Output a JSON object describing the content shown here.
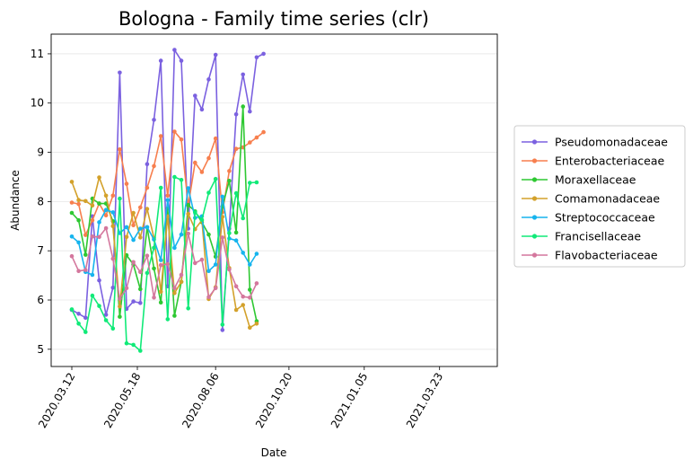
{
  "chart_data": {
    "type": "line",
    "title": "Bologna - Family time series (clr)",
    "xlabel": "Date",
    "ylabel": "Abundance",
    "x_ticks": [
      "2020.03.12",
      "2020.05.18",
      "2020.08.06",
      "2020.10.20",
      "2021.01.05",
      "2021.03.23"
    ],
    "y_ticks": [
      5,
      6,
      7,
      8,
      9,
      10,
      11
    ],
    "ylim": [
      4.65,
      11.4
    ],
    "grid": "horizontal",
    "legend_position": "right",
    "x": [
      "2020-03-12",
      "2020-03-19",
      "2020-03-26",
      "2020-04-02",
      "2020-04-09",
      "2020-04-16",
      "2020-04-23",
      "2020-04-30",
      "2020-05-07",
      "2020-05-14",
      "2020-05-21",
      "2020-05-28",
      "2020-06-04",
      "2020-06-11",
      "2020-06-18",
      "2020-06-25",
      "2020-07-02",
      "2020-07-09",
      "2020-07-16",
      "2020-07-23",
      "2020-07-30",
      "2020-08-06",
      "2020-08-13",
      "2020-08-20",
      "2020-08-27",
      "2020-09-03",
      "2020-09-10",
      "2020-09-17",
      "2020-09-24",
      "2020-10-01",
      "2020-10-08",
      "2020-10-15",
      "2020-10-22",
      "2020-10-29",
      "2020-11-05",
      "2020-11-12",
      "2020-11-19",
      "2020-11-26",
      "2020-12-03",
      "2020-12-10",
      "2020-12-17",
      "2020-12-24",
      "2020-12-31",
      "2021-01-07",
      "2021-01-14",
      "2021-01-21",
      "2021-01-28",
      "2021-02-04",
      "2021-02-11",
      "2021-02-18",
      "2021-02-25",
      "2021-03-04",
      "2021-03-11",
      "2021-03-18",
      "2021-03-25",
      "2021-04-01",
      "2021-04-08",
      "2021-04-15",
      "2021-04-22",
      "2021-04-29"
    ],
    "series": [
      {
        "name": "Pseudomonadaceae",
        "color": "#7b61e0",
        "points": [
          [
            "2020-03-12",
            5.8
          ],
          [
            "2020-03-19",
            5.72
          ],
          [
            "2020-03-26",
            5.64
          ],
          [
            "2020-04-02",
            7.7
          ],
          [
            "2020-04-09",
            6.4
          ],
          [
            "2020-04-16",
            5.7
          ],
          [
            "2020-04-23",
            6.25
          ],
          [
            "2020-04-30",
            10.62
          ],
          [
            "2020-05-07",
            5.82
          ],
          [
            "2020-05-14",
            5.97
          ],
          [
            "2020-05-21",
            5.94
          ],
          [
            "2020-05-28",
            8.76
          ],
          [
            "2020-06-04",
            9.66
          ],
          [
            "2020-06-11",
            10.86
          ],
          [
            "2020-06-18",
            6.28
          ],
          [
            "2020-06-25",
            11.08
          ],
          [
            "2020-07-02",
            10.86
          ],
          [
            "2020-07-09",
            7.45
          ],
          [
            "2020-07-16",
            10.15
          ],
          [
            "2020-07-23",
            9.87
          ],
          [
            "2020-07-30",
            10.48
          ],
          [
            "2020-08-06",
            10.98
          ],
          [
            "2020-08-13",
            5.39
          ],
          [
            "2020-08-20",
            7.45
          ],
          [
            "2020-08-27",
            9.77
          ],
          [
            "2020-09-03",
            10.58
          ],
          [
            "2020-09-10",
            9.83
          ],
          [
            "2020-09-17",
            10.93
          ],
          [
            "2020-09-24",
            11.0
          ]
        ]
      },
      {
        "name": "Enterobacteriaceae",
        "color": "#f77f4e",
        "points": [
          [
            "2020-03-12",
            7.98
          ],
          [
            "2020-03-19",
            7.95
          ],
          [
            "2020-03-26",
            7.32
          ],
          [
            "2020-04-02",
            7.62
          ],
          [
            "2020-04-09",
            7.96
          ],
          [
            "2020-04-16",
            7.72
          ],
          [
            "2020-04-23",
            8.12
          ],
          [
            "2020-04-30",
            9.06
          ],
          [
            "2020-05-07",
            8.36
          ],
          [
            "2020-05-14",
            7.52
          ],
          [
            "2020-05-21",
            7.88
          ],
          [
            "2020-05-28",
            8.28
          ],
          [
            "2020-06-04",
            8.72
          ],
          [
            "2020-06-11",
            9.33
          ],
          [
            "2020-06-18",
            8.12
          ],
          [
            "2020-06-25",
            9.42
          ],
          [
            "2020-07-02",
            9.26
          ],
          [
            "2020-07-09",
            7.92
          ],
          [
            "2020-07-16",
            8.79
          ],
          [
            "2020-07-23",
            8.6
          ],
          [
            "2020-07-30",
            8.88
          ],
          [
            "2020-08-06",
            9.28
          ],
          [
            "2020-08-13",
            7.78
          ],
          [
            "2020-08-20",
            8.62
          ],
          [
            "2020-08-27",
            9.07
          ],
          [
            "2020-09-03",
            9.1
          ],
          [
            "2020-09-10",
            9.2
          ],
          [
            "2020-09-17",
            9.3
          ],
          [
            "2020-09-24",
            9.41
          ]
        ]
      },
      {
        "name": "Moraxellaceae",
        "color": "#2ec832",
        "points": [
          [
            "2020-03-12",
            7.77
          ],
          [
            "2020-03-19",
            7.62
          ],
          [
            "2020-03-26",
            6.92
          ],
          [
            "2020-04-02",
            8.06
          ],
          [
            "2020-04-09",
            7.96
          ],
          [
            "2020-04-16",
            7.96
          ],
          [
            "2020-04-23",
            7.6
          ],
          [
            "2020-04-30",
            5.66
          ],
          [
            "2020-05-07",
            6.91
          ],
          [
            "2020-05-14",
            6.72
          ],
          [
            "2020-05-21",
            6.22
          ],
          [
            "2020-05-28",
            7.48
          ],
          [
            "2020-06-04",
            6.64
          ],
          [
            "2020-06-11",
            5.95
          ],
          [
            "2020-06-18",
            7.86
          ],
          [
            "2020-06-25",
            5.68
          ],
          [
            "2020-07-02",
            6.37
          ],
          [
            "2020-07-09",
            7.93
          ],
          [
            "2020-07-16",
            7.8
          ],
          [
            "2020-07-23",
            7.58
          ],
          [
            "2020-07-30",
            7.33
          ],
          [
            "2020-08-06",
            6.88
          ],
          [
            "2020-08-13",
            7.9
          ],
          [
            "2020-08-20",
            8.42
          ],
          [
            "2020-08-27",
            7.37
          ],
          [
            "2020-09-03",
            9.93
          ],
          [
            "2020-09-10",
            6.21
          ],
          [
            "2020-09-17",
            5.57
          ]
        ]
      },
      {
        "name": "Comamonadaceae",
        "color": "#d3a12b",
        "points": [
          [
            "2020-03-12",
            8.4
          ],
          [
            "2020-03-19",
            8.03
          ],
          [
            "2020-03-26",
            8.01
          ],
          [
            "2020-04-02",
            7.92
          ],
          [
            "2020-04-09",
            8.49
          ],
          [
            "2020-04-16",
            8.12
          ],
          [
            "2020-04-23",
            7.5
          ],
          [
            "2020-04-30",
            5.87
          ],
          [
            "2020-05-07",
            7.28
          ],
          [
            "2020-05-14",
            7.77
          ],
          [
            "2020-05-21",
            7.27
          ],
          [
            "2020-05-28",
            7.85
          ],
          [
            "2020-06-04",
            7.26
          ],
          [
            "2020-06-11",
            6.17
          ],
          [
            "2020-06-18",
            7.7
          ],
          [
            "2020-06-25",
            6.14
          ],
          [
            "2020-07-02",
            6.37
          ],
          [
            "2020-07-09",
            7.75
          ],
          [
            "2020-07-16",
            7.44
          ],
          [
            "2020-07-23",
            7.62
          ],
          [
            "2020-07-30",
            6.02
          ],
          [
            "2020-08-06",
            6.26
          ],
          [
            "2020-08-13",
            7.69
          ],
          [
            "2020-08-20",
            6.65
          ],
          [
            "2020-08-27",
            5.8
          ],
          [
            "2020-09-03",
            5.9
          ],
          [
            "2020-09-10",
            5.44
          ],
          [
            "2020-09-17",
            5.52
          ]
        ]
      },
      {
        "name": "Streptococcaceae",
        "color": "#16b4ee",
        "points": [
          [
            "2020-03-12",
            7.29
          ],
          [
            "2020-03-19",
            7.17
          ],
          [
            "2020-03-26",
            6.57
          ],
          [
            "2020-04-02",
            6.51
          ],
          [
            "2020-04-09",
            7.58
          ],
          [
            "2020-04-16",
            7.83
          ],
          [
            "2020-04-23",
            7.78
          ],
          [
            "2020-04-30",
            7.36
          ],
          [
            "2020-05-07",
            7.48
          ],
          [
            "2020-05-14",
            7.22
          ],
          [
            "2020-05-21",
            7.45
          ],
          [
            "2020-05-28",
            7.48
          ],
          [
            "2020-06-04",
            7.23
          ],
          [
            "2020-06-11",
            6.81
          ],
          [
            "2020-06-18",
            8.03
          ],
          [
            "2020-06-25",
            7.06
          ],
          [
            "2020-07-02",
            7.33
          ],
          [
            "2020-07-09",
            8.27
          ],
          [
            "2020-07-16",
            7.67
          ],
          [
            "2020-07-23",
            7.7
          ],
          [
            "2020-07-30",
            6.59
          ],
          [
            "2020-08-06",
            6.72
          ],
          [
            "2020-08-13",
            8.1
          ],
          [
            "2020-08-20",
            7.25
          ],
          [
            "2020-08-27",
            7.21
          ],
          [
            "2020-09-03",
            6.96
          ],
          [
            "2020-09-10",
            6.72
          ],
          [
            "2020-09-17",
            6.94
          ]
        ]
      },
      {
        "name": "Francisellaceae",
        "color": "#10ea78",
        "points": [
          [
            "2020-03-12",
            5.81
          ],
          [
            "2020-03-19",
            5.52
          ],
          [
            "2020-03-26",
            5.35
          ],
          [
            "2020-04-02",
            6.09
          ],
          [
            "2020-04-09",
            5.88
          ],
          [
            "2020-04-16",
            5.59
          ],
          [
            "2020-04-23",
            5.42
          ],
          [
            "2020-04-30",
            8.06
          ],
          [
            "2020-05-07",
            5.12
          ],
          [
            "2020-05-14",
            5.09
          ],
          [
            "2020-05-21",
            4.97
          ],
          [
            "2020-05-28",
            6.55
          ],
          [
            "2020-06-04",
            7.06
          ],
          [
            "2020-06-11",
            8.28
          ],
          [
            "2020-06-18",
            5.61
          ],
          [
            "2020-06-25",
            8.5
          ],
          [
            "2020-07-02",
            8.44
          ],
          [
            "2020-07-09",
            5.83
          ],
          [
            "2020-07-16",
            7.78
          ],
          [
            "2020-07-23",
            7.63
          ],
          [
            "2020-07-30",
            8.18
          ],
          [
            "2020-08-06",
            8.46
          ],
          [
            "2020-08-13",
            5.5
          ],
          [
            "2020-08-20",
            7.36
          ],
          [
            "2020-08-27",
            8.17
          ],
          [
            "2020-09-03",
            7.66
          ],
          [
            "2020-09-10",
            8.38
          ],
          [
            "2020-09-17",
            8.39
          ]
        ]
      },
      {
        "name": "Flavobacteriaceae",
        "color": "#d4779d",
        "points": [
          [
            "2020-03-12",
            6.89
          ],
          [
            "2020-03-19",
            6.59
          ],
          [
            "2020-03-26",
            6.61
          ],
          [
            "2020-04-02",
            7.29
          ],
          [
            "2020-04-09",
            7.28
          ],
          [
            "2020-04-16",
            7.46
          ],
          [
            "2020-04-23",
            6.84
          ],
          [
            "2020-04-30",
            6.03
          ],
          [
            "2020-05-07",
            6.24
          ],
          [
            "2020-05-14",
            6.77
          ],
          [
            "2020-05-21",
            6.57
          ],
          [
            "2020-05-28",
            6.9
          ],
          [
            "2020-06-04",
            6.05
          ],
          [
            "2020-06-11",
            6.71
          ],
          [
            "2020-06-18",
            6.73
          ],
          [
            "2020-06-25",
            6.24
          ],
          [
            "2020-07-02",
            6.51
          ],
          [
            "2020-07-09",
            7.35
          ],
          [
            "2020-07-16",
            6.75
          ],
          [
            "2020-07-23",
            6.82
          ],
          [
            "2020-07-30",
            6.06
          ],
          [
            "2020-08-06",
            6.24
          ],
          [
            "2020-08-13",
            7.27
          ],
          [
            "2020-08-20",
            6.62
          ],
          [
            "2020-08-27",
            6.28
          ],
          [
            "2020-09-03",
            6.07
          ],
          [
            "2020-09-10",
            6.05
          ],
          [
            "2020-09-17",
            6.34
          ]
        ]
      }
    ]
  }
}
